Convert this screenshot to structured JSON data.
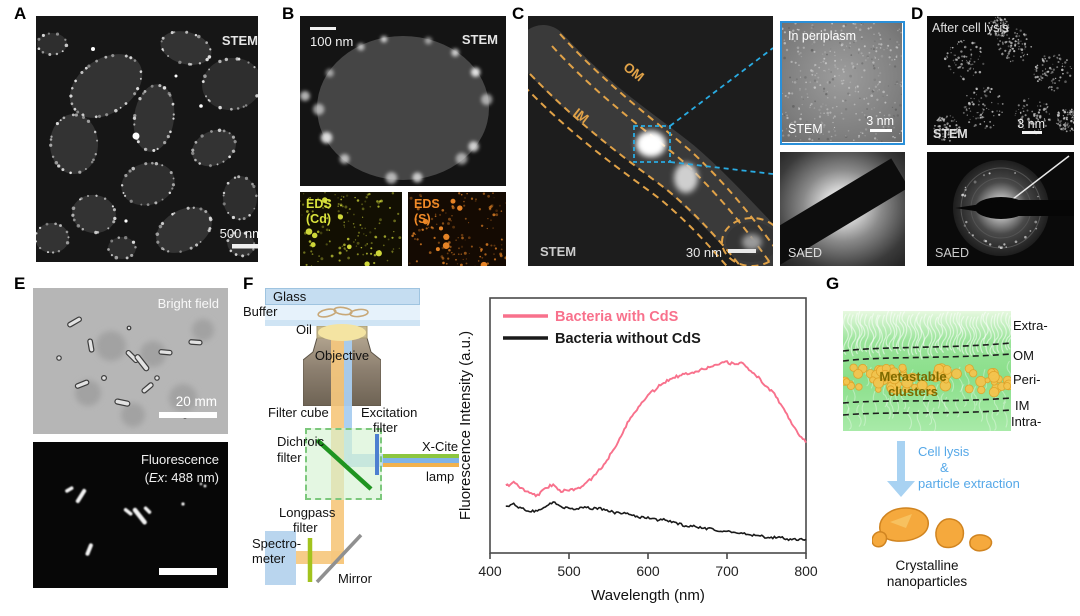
{
  "figure": {
    "panel_a": {
      "label": "A",
      "mode": "STEM",
      "scale": "500 nm"
    },
    "panel_b": {
      "label": "B",
      "mode": "STEM",
      "scale": "100 nm",
      "eds_cd_line1": "EDS",
      "eds_cd_line2": "(Cd)",
      "eds_s_line1": "EDS",
      "eds_s_line2": "(S)"
    },
    "panel_c": {
      "label": "C",
      "mode": "STEM",
      "scale": "30 nm",
      "om": "OM",
      "im": "IM",
      "inset": {
        "title": "In periplasm",
        "mode": "STEM",
        "scale": "3 nm",
        "saed": "SAED"
      }
    },
    "panel_d": {
      "label": "D",
      "title": "After cell lysis",
      "mode": "STEM",
      "scale": "3 nm",
      "saed": "SAED"
    },
    "panel_e": {
      "label": "E",
      "bright_title": "Bright field",
      "bright_scale": "20 mm",
      "fluo_title": "Fluorescence",
      "fluo_sub_open": "(",
      "fluo_sub_italic": "Ex",
      "fluo_sub_rest": ": 488 nm)"
    },
    "panel_f": {
      "label": "F",
      "glass": "Glass",
      "buffer": "Buffer",
      "oil": "Oil",
      "objective": "Objective",
      "filter_cube": "Filter cube",
      "excitation_1": "Excitation",
      "excitation_2": "filter",
      "dichroic_1": "Dichroic",
      "dichroic_2": "filter",
      "xcite_1": "X-Cite",
      "xcite_2": "lamp",
      "longpass_1": "Longpass",
      "longpass_2": "filter",
      "spectro_1": "Spectro-",
      "spectro_2": "meter",
      "mirror": "Mirror"
    },
    "panel_g": {
      "label": "G",
      "region_labels": [
        "Extra-",
        "OM",
        "Peri-",
        "IM",
        "Intra-"
      ],
      "metastable_1": "Metastable",
      "metastable_2": "clusters",
      "arrow_1": "Cell lysis",
      "arrow_2": "&",
      "arrow_3": "particle extraction",
      "product_1": "Crystalline",
      "product_2": "nanoparticles"
    },
    "chart_data": {
      "type": "line",
      "title": "",
      "xlabel": "Wavelength (nm)",
      "ylabel": "Fluorescence Intensity (a.u.)",
      "xlim": [
        400,
        800
      ],
      "xticks": [
        400,
        500,
        600,
        700,
        800
      ],
      "ylim": [
        0,
        1.15
      ],
      "grid": false,
      "legend_position": "top-left",
      "x": [
        420,
        430,
        440,
        450,
        460,
        470,
        480,
        490,
        500,
        510,
        520,
        530,
        540,
        550,
        560,
        570,
        580,
        590,
        600,
        610,
        620,
        630,
        640,
        650,
        660,
        670,
        680,
        690,
        700,
        710,
        720,
        730,
        740,
        750,
        760,
        770,
        780,
        790,
        800
      ],
      "series": [
        {
          "name": "Bacteria with CdS",
          "color": "#f8718c",
          "values": [
            0.3,
            0.32,
            0.29,
            0.27,
            0.26,
            0.29,
            0.31,
            0.28,
            0.28,
            0.29,
            0.31,
            0.34,
            0.38,
            0.43,
            0.49,
            0.56,
            0.62,
            0.67,
            0.71,
            0.74,
            0.77,
            0.79,
            0.8,
            0.81,
            0.82,
            0.83,
            0.84,
            0.85,
            0.86,
            0.85,
            0.86,
            0.82,
            0.79,
            0.75,
            0.72,
            0.66,
            0.6,
            0.54,
            0.5
          ]
        },
        {
          "name": "Bacteria without CdS",
          "color": "#1a1a1a",
          "values": [
            0.21,
            0.22,
            0.2,
            0.19,
            0.19,
            0.21,
            0.23,
            0.21,
            0.2,
            0.2,
            0.21,
            0.2,
            0.2,
            0.19,
            0.18,
            0.18,
            0.17,
            0.16,
            0.16,
            0.15,
            0.15,
            0.14,
            0.13,
            0.12,
            0.12,
            0.11,
            0.11,
            0.1,
            0.1,
            0.09,
            0.09,
            0.08,
            0.08,
            0.07,
            0.07,
            0.07,
            0.06,
            0.06,
            0.06
          ]
        }
      ]
    },
    "colors": {
      "inset_border": "#2a8fd8",
      "membrane_dash": "#e0a248",
      "pink": "#f8718c",
      "eds_cd": "#d9e23c",
      "eds_s": "#f08a28",
      "arrow_blue": "#a8d2f2",
      "nanoparticle": "#f5a93d"
    }
  }
}
